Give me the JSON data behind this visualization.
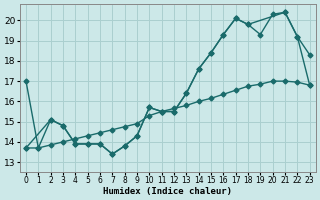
{
  "xlabel": "Humidex (Indice chaleur)",
  "bg_color": "#cce8e8",
  "grid_color": "#aacfcf",
  "line_color": "#1a6b6b",
  "xlim": [
    -0.5,
    23.5
  ],
  "ylim": [
    12.5,
    20.8
  ],
  "xticks": [
    0,
    1,
    2,
    3,
    4,
    5,
    6,
    7,
    8,
    9,
    10,
    11,
    12,
    13,
    14,
    15,
    16,
    17,
    18,
    19,
    20,
    21,
    22,
    23
  ],
  "yticks": [
    13,
    14,
    15,
    16,
    17,
    18,
    19,
    20
  ],
  "line1_x": [
    0,
    1,
    2,
    3,
    4,
    5,
    6,
    7,
    8,
    9,
    10,
    11,
    12,
    13,
    14,
    15,
    16,
    17,
    18,
    19,
    20,
    21,
    22,
    23
  ],
  "line1_y": [
    17.0,
    13.7,
    15.1,
    14.8,
    13.9,
    13.9,
    13.9,
    13.4,
    13.8,
    14.3,
    15.7,
    15.5,
    15.5,
    16.4,
    17.6,
    18.4,
    19.3,
    20.1,
    19.8,
    19.3,
    20.3,
    20.4,
    19.2,
    18.3
  ],
  "line2_x": [
    0,
    2,
    3,
    4,
    5,
    6,
    7,
    8,
    9,
    10,
    11,
    12,
    13,
    14,
    15,
    16,
    17,
    18,
    21,
    22,
    23
  ],
  "line2_y": [
    13.7,
    15.1,
    14.8,
    13.9,
    13.9,
    13.9,
    13.4,
    13.8,
    14.3,
    15.7,
    15.5,
    15.5,
    16.4,
    17.6,
    18.4,
    19.3,
    20.1,
    19.8,
    20.4,
    19.2,
    16.8
  ],
  "line3_x": [
    0,
    1,
    2,
    3,
    4,
    5,
    6,
    7,
    8,
    9,
    10,
    11,
    12,
    13,
    14,
    15,
    16,
    17,
    18,
    19,
    20,
    21,
    22,
    23
  ],
  "line3_y": [
    13.7,
    13.7,
    13.85,
    14.0,
    14.15,
    14.3,
    14.45,
    14.6,
    14.75,
    14.9,
    15.3,
    15.5,
    15.65,
    15.8,
    16.0,
    16.15,
    16.35,
    16.55,
    16.75,
    16.85,
    17.0,
    17.0,
    16.95,
    16.8
  ]
}
